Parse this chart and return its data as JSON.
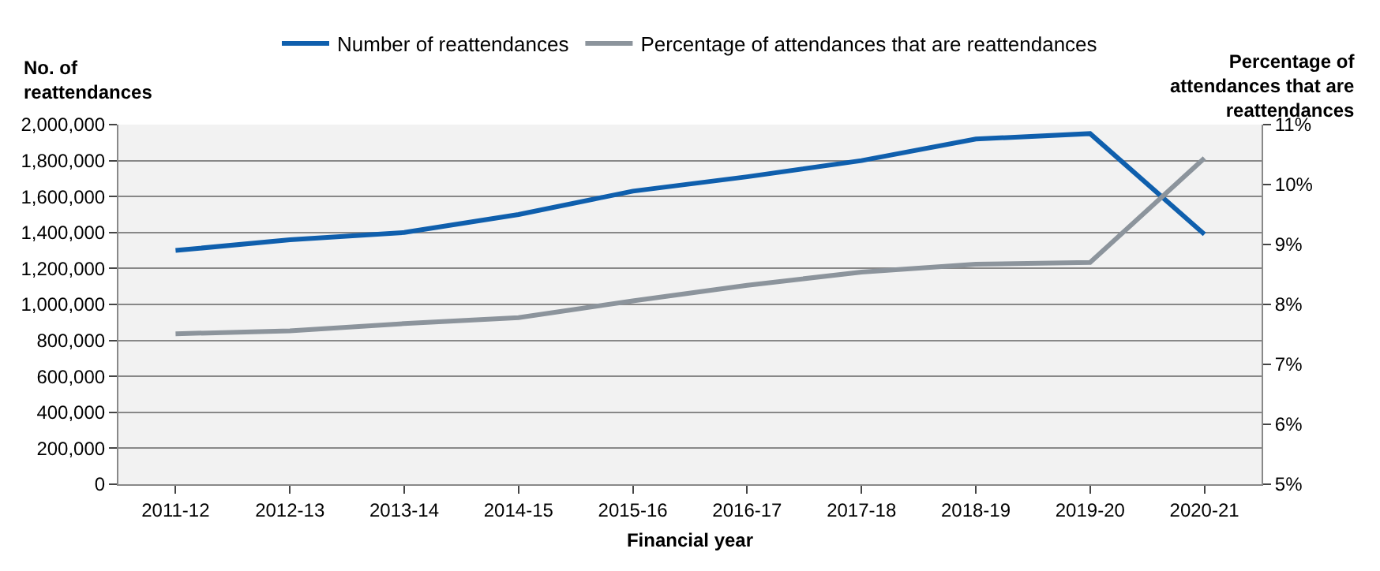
{
  "chart_data": {
    "type": "line",
    "xlabel": "Financial year",
    "ylabel": "No. of\nreattendances",
    "y2label": "Percentage of\nattendances that are\nreattendances",
    "categories": [
      "2011-12",
      "2012-13",
      "2013-14",
      "2014-15",
      "2015-16",
      "2016-17",
      "2017-18",
      "2018-19",
      "2019-20",
      "2020-21"
    ],
    "series": [
      {
        "name": "Number of reattendances",
        "color": "#0f5fad",
        "values": [
          1300000,
          1360000,
          1400000,
          1500000,
          1630000,
          1710000,
          1800000,
          1920000,
          1950000,
          1390000
        ]
      },
      {
        "name": "Percentage of attendances that are reattendances",
        "color": "#8c949c",
        "axis": "y2",
        "values": [
          7.51,
          7.56,
          7.68,
          7.78,
          8.06,
          8.32,
          8.54,
          8.67,
          8.7,
          10.44
        ]
      }
    ],
    "ylim": [
      0,
      2000000
    ],
    "yticks": [
      {
        "value": 0,
        "label": "0"
      },
      {
        "value": 200000,
        "label": "200,000"
      },
      {
        "value": 400000,
        "label": "400,000"
      },
      {
        "value": 600000,
        "label": "600,000"
      },
      {
        "value": 800000,
        "label": "800,000"
      },
      {
        "value": 1000000,
        "label": "1,000,000"
      },
      {
        "value": 1200000,
        "label": "1,200,000"
      },
      {
        "value": 1400000,
        "label": "1,400,000"
      },
      {
        "value": 1600000,
        "label": "1,600,000"
      },
      {
        "value": 1800000,
        "label": "1,800,000"
      },
      {
        "value": 2000000,
        "label": "2,000,000"
      }
    ],
    "y2lim": [
      5,
      11
    ],
    "y2ticks": [
      {
        "value": 5,
        "label": "5%"
      },
      {
        "value": 6,
        "label": "6%"
      },
      {
        "value": 7,
        "label": "7%"
      },
      {
        "value": 8,
        "label": "8%"
      },
      {
        "value": 9,
        "label": "9%"
      },
      {
        "value": 10,
        "label": "10%"
      },
      {
        "value": 11,
        "label": "11%"
      }
    ],
    "grid": "y",
    "legend": "top",
    "marker": "none",
    "line_style": "solid"
  }
}
